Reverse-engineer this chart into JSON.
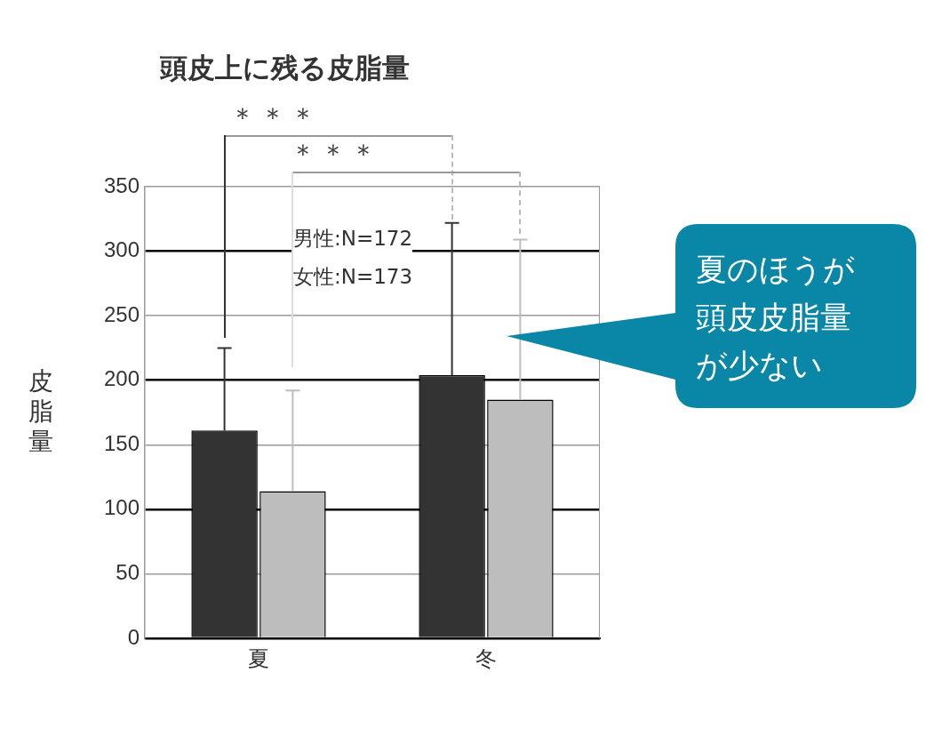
{
  "chart_data": {
    "type": "bar",
    "title": "頭皮上に残る皮脂量",
    "ylabel": "皮脂量",
    "categories": [
      "夏",
      "冬"
    ],
    "series": [
      {
        "color": "#333333",
        "values": [
          161,
          204
        ],
        "errors": [
          [
            161,
            225
          ],
          [
            204,
            322
          ]
        ]
      },
      {
        "color": "#bdbdbd",
        "values": [
          114,
          185
        ],
        "errors": [
          [
            114,
            192
          ],
          [
            185,
            309
          ]
        ]
      }
    ],
    "ylim": [
      0,
      350
    ],
    "yticks": [
      0,
      50,
      100,
      150,
      200,
      250,
      300,
      350
    ],
    "grid": "y",
    "legend": false,
    "annotations": [
      "＊＊＊",
      "＊＊＊",
      "男性:N=172",
      "女性:N=173",
      "夏のほうが頭皮皮脂量が少ない"
    ]
  }
}
